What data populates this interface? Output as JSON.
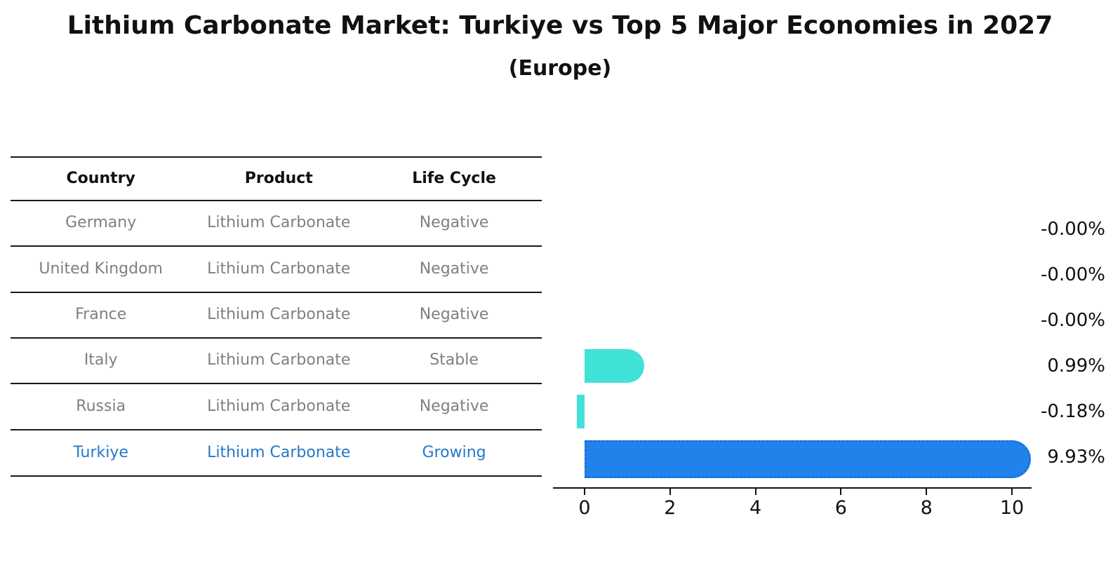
{
  "title": "Lithium Carbonate Market: Turkiye vs Top 5 Major Economies in 2027",
  "subtitle": "(Europe)",
  "table": {
    "headers": [
      "Country",
      "Product",
      "Life Cycle"
    ],
    "rows": [
      {
        "country": "Germany",
        "product": "Lithium Carbonate",
        "life_cycle": "Negative",
        "highlight": false
      },
      {
        "country": "United Kingdom",
        "product": "Lithium Carbonate",
        "life_cycle": "Negative",
        "highlight": false
      },
      {
        "country": "France",
        "product": "Lithium Carbonate",
        "life_cycle": "Negative",
        "highlight": false
      },
      {
        "country": "Italy",
        "product": "Lithium Carbonate",
        "life_cycle": "Stable",
        "highlight": false
      },
      {
        "country": "Russia",
        "product": "Lithium Carbonate",
        "life_cycle": "Negative",
        "highlight": false
      },
      {
        "country": "Turkiye",
        "product": "Lithium Carbonate",
        "life_cycle": "Growing",
        "highlight": true
      }
    ]
  },
  "chart_data": {
    "type": "bar",
    "orientation": "horizontal",
    "categories": [
      "Germany",
      "United Kingdom",
      "France",
      "Italy",
      "Russia",
      "Turkiye"
    ],
    "values": [
      -0.0,
      -0.0,
      -0.0,
      0.99,
      -0.18,
      9.93
    ],
    "value_labels": [
      "-0.00%",
      "-0.00%",
      "-0.00%",
      "0.99%",
      "-0.18%",
      "9.93%"
    ],
    "unit": "%",
    "title": "",
    "xlabel": "",
    "ylabel": "",
    "xticks": [
      0,
      2,
      4,
      6,
      8,
      10
    ],
    "xlim": [
      -0.74,
      10.46
    ],
    "grid": false,
    "legend": "none",
    "bar_colors": [
      "#40E2D8",
      "#40E2D8",
      "#40E2D8",
      "#40E2D8",
      "#40E2D8",
      "#2182EC"
    ],
    "highlight_index": 5,
    "highlight_border_color": "#1b6fd8",
    "highlight_border_style": "dotted"
  },
  "colors": {
    "background": "#ffffff",
    "text_primary": "#111111",
    "text_muted": "#7f7f7f",
    "text_highlight": "#2478c8",
    "table_line": "#1a1a1a",
    "bar_default": "#40E2D8",
    "bar_highlight": "#2182EC"
  }
}
